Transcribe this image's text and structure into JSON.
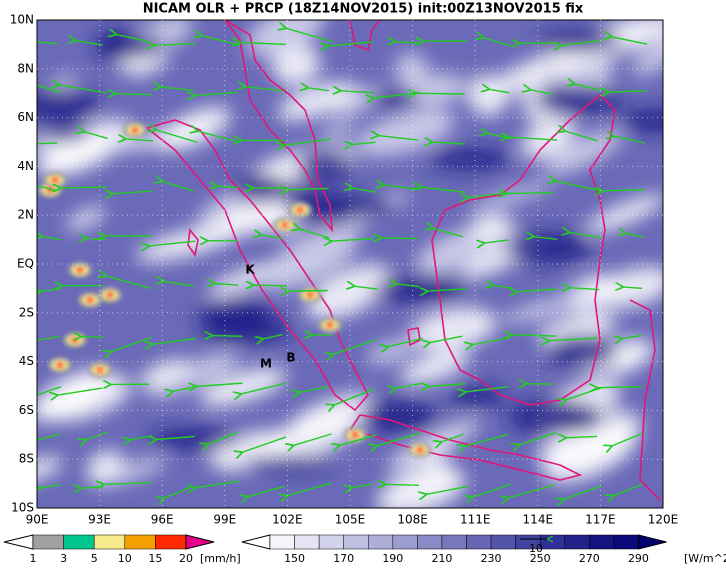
{
  "header": {
    "title": "NICAM OLR + PRCP (18Z14NOV2015) init:00Z13NOV2015 fix"
  },
  "map": {
    "lon_ticks": [
      "90E",
      "93E",
      "96E",
      "99E",
      "102E",
      "105E",
      "108E",
      "111E",
      "114E",
      "117E",
      "120E"
    ],
    "lat_ticks": [
      "10N",
      "8N",
      "6N",
      "4N",
      "2N",
      "EQ",
      "2S",
      "4S",
      "6S",
      "8S",
      "10S"
    ],
    "stations": [
      "K",
      "M",
      "B"
    ],
    "vector_reference": "10"
  },
  "legend": {
    "precipitation": {
      "labels": [
        "1",
        "3",
        "5",
        "10",
        "15",
        "20"
      ],
      "unit": "[mm/h]",
      "colors": [
        "#ffffff",
        "#a0a0a0",
        "#00c88c",
        "#f5eb8c",
        "#f5a000",
        "#ff2800",
        "#e6008c"
      ]
    },
    "olr": {
      "labels": [
        "150",
        "170",
        "190",
        "210",
        "230",
        "250",
        "270",
        "290"
      ],
      "unit": "[W/m^2]",
      "colors": [
        "#ffffff",
        "#f4f4fa",
        "#e4e4f2",
        "#d2d2ea",
        "#c0c0e2",
        "#aeaed8",
        "#9c9ccf",
        "#8a8ac6",
        "#7878bd",
        "#6666b4",
        "#5454aa",
        "#4242a0",
        "#303096",
        "#22228a",
        "#141480",
        "#0a0a78",
        "#00006e"
      ]
    }
  }
}
